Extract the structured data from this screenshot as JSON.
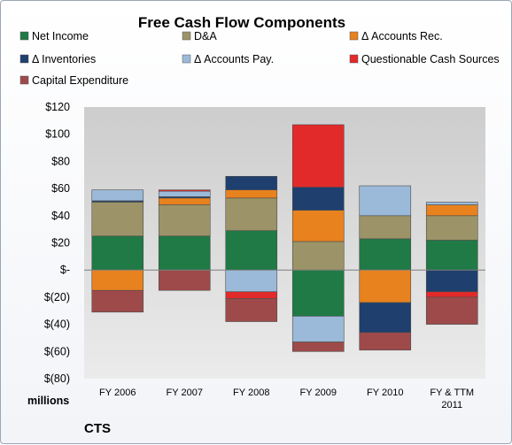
{
  "chart_data": {
    "type": "bar",
    "stacked": true,
    "title": "Free Cash Flow Components",
    "unit_label": "millions",
    "company": "CTS",
    "categories": [
      "FY 2006",
      "FY 2007",
      "FY 2008",
      "FY 2009",
      "FY 2010",
      "FY & TTM 2011"
    ],
    "ylim": [
      -80,
      120
    ],
    "yticks": [
      {
        "value": 120,
        "label": "$120"
      },
      {
        "value": 100,
        "label": "$100"
      },
      {
        "value": 80,
        "label": "$80"
      },
      {
        "value": 60,
        "label": "$60"
      },
      {
        "value": 40,
        "label": "$40"
      },
      {
        "value": 20,
        "label": "$20"
      },
      {
        "value": 0,
        "label": "$-"
      },
      {
        "value": -20,
        "label": "$(20)"
      },
      {
        "value": -40,
        "label": "$(40)"
      },
      {
        "value": -60,
        "label": "$(60)"
      },
      {
        "value": -80,
        "label": "$(80)"
      }
    ],
    "grid": false,
    "legend_position": "top",
    "series": [
      {
        "name": "Net Income",
        "color": "#1f7a45",
        "values": [
          25,
          25,
          29,
          -34,
          23,
          22
        ]
      },
      {
        "name": "D&A",
        "color": "#9c9468",
        "values": [
          25,
          23,
          24,
          21,
          17,
          18
        ]
      },
      {
        "name": "Δ Accounts Rec.",
        "color": "#e8821e",
        "values": [
          -15,
          5,
          6,
          23,
          -24,
          8
        ]
      },
      {
        "name": "Δ Inventories",
        "color": "#1f3f6e",
        "values": [
          1,
          1,
          10,
          17,
          -22,
          -16
        ]
      },
      {
        "name": "Δ Accounts Pay.",
        "color": "#9bbad9",
        "values": [
          8,
          4,
          -16,
          -19,
          22,
          2
        ]
      },
      {
        "name": "Questionable Cash Sources",
        "color": "#e22a2a",
        "values": [
          0,
          1,
          -5,
          46,
          0,
          -4
        ]
      },
      {
        "name": "Capital Expenditure",
        "color": "#9e4a4a",
        "values": [
          -16,
          -15,
          -17,
          -7,
          -13,
          -20
        ]
      }
    ]
  }
}
